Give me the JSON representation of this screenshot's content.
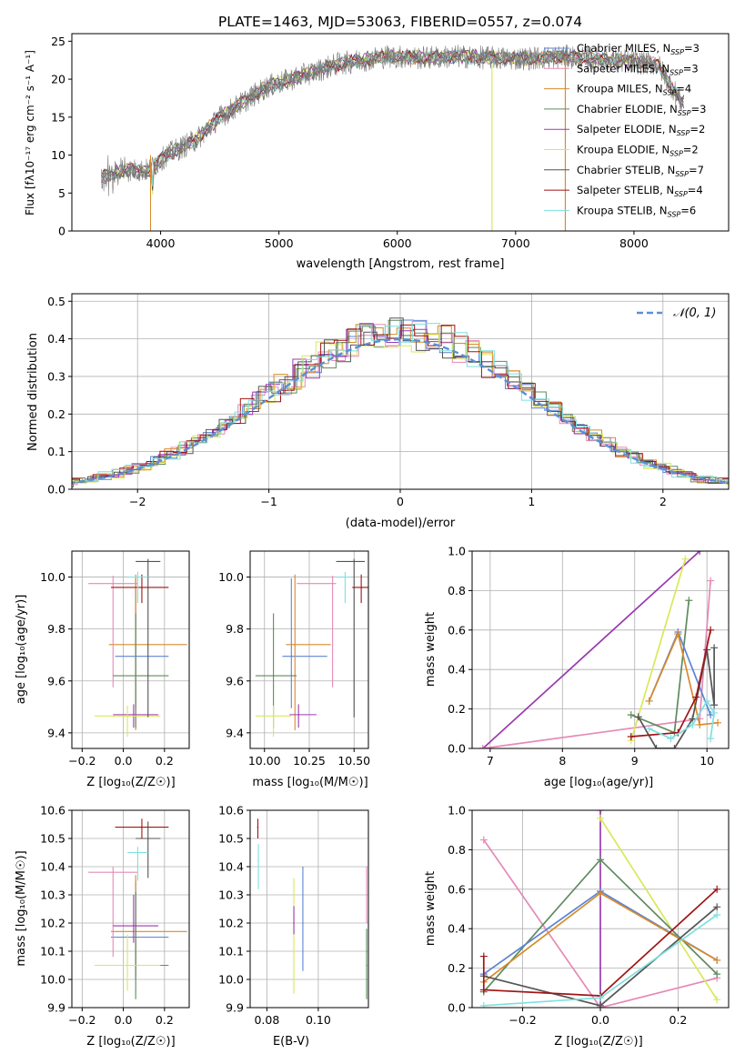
{
  "title": "PLATE=1463, MJD=53063, FIBERID=0557, z=0.074",
  "colors": {
    "cm": "#5b84d6",
    "sm": "#e58ab7",
    "km": "#d98a2b",
    "ce": "#5f8a5f",
    "se": "#9a3ab0",
    "ke": "#d9e85a",
    "cs": "#555555",
    "ss": "#a01515",
    "ks": "#7fdfe0",
    "grid": "#b0b0b0"
  },
  "labels": {
    "spec_x": "wavelength [Angstrom, rest frame]",
    "spec_y": "Flux [fλ10⁻¹⁷ erg cm⁻² s⁻¹ A⁻¹]",
    "hist_x": "(data-model)/error",
    "hist_y": "Normed distribution",
    "hist_legend": "𝒩(0, 1)",
    "p1_x": "Z [log₁₀(Z/Z☉)]",
    "p1_y": "age  [log₁₀(age/yr)]",
    "p2_x": "mass [log₁₀(M/M☉)]",
    "p3_x": "age  [log₁₀(age/yr)]",
    "p3_y": "mass weight",
    "p4_x": "Z [log₁₀(Z/Z☉)]",
    "p4_y": "mass [log₁₀(M/M☉)]",
    "p5_x": "E(B-V)",
    "p6_x": "Z [log₁₀(Z/Z☉)]",
    "p6_y": "mass weight"
  },
  "legend": [
    {
      "key": "cm",
      "text": "Chabrier MILES, N",
      "sub": "SSP",
      "n": "=3"
    },
    {
      "key": "sm",
      "text": "Salpeter MILES, N",
      "sub": "SSP",
      "n": "=3"
    },
    {
      "key": "km",
      "text": "Kroupa MILES, N",
      "sub": "SSP",
      "n": "=4"
    },
    {
      "key": "ce",
      "text": "Chabrier ELODIE, N",
      "sub": "SSP",
      "n": "=3"
    },
    {
      "key": "se",
      "text": "Salpeter ELODIE, N",
      "sub": "SSP",
      "n": "=2"
    },
    {
      "key": "ke",
      "text": "Kroupa ELODIE, N",
      "sub": "SSP",
      "n": "=2"
    },
    {
      "key": "cs",
      "text": "Chabrier STELIB, N",
      "sub": "SSP",
      "n": "=7"
    },
    {
      "key": "ss",
      "text": "Salpeter STELIB, N",
      "sub": "SSP",
      "n": "=4"
    },
    {
      "key": "ks",
      "text": "Kroupa STELIB, N",
      "sub": "SSP",
      "n": "=6"
    }
  ],
  "chart_data": [
    {
      "type": "line",
      "panel": "spectrum",
      "xlim": [
        3250,
        8800
      ],
      "ylim": [
        0,
        26
      ],
      "xticks": [
        4000,
        5000,
        6000,
        7000,
        8000
      ],
      "yticks": [
        0,
        5,
        10,
        15,
        20,
        25
      ],
      "series_note": "observed spectrum (grey) with 9 model fits",
      "continuum": [
        [
          3500,
          7
        ],
        [
          3700,
          8
        ],
        [
          3900,
          8
        ],
        [
          4050,
          10
        ],
        [
          4300,
          12
        ],
        [
          4500,
          15
        ],
        [
          4700,
          17
        ],
        [
          4900,
          19
        ],
        [
          5100,
          20
        ],
        [
          5300,
          21
        ],
        [
          5500,
          22
        ],
        [
          5700,
          22.5
        ],
        [
          5900,
          23
        ],
        [
          6200,
          22.8
        ],
        [
          6500,
          23
        ],
        [
          6800,
          22.8
        ],
        [
          7000,
          22.7
        ],
        [
          7200,
          22.8
        ],
        [
          7400,
          23
        ],
        [
          8200,
          22
        ],
        [
          8400,
          17
        ]
      ]
    },
    {
      "type": "histogram",
      "panel": "residuals",
      "xlim": [
        -2.5,
        2.5
      ],
      "ylim": [
        0,
        0.52
      ],
      "xticks": [
        -2,
        -1,
        0,
        1,
        2
      ],
      "yticks": [
        0,
        0.1,
        0.2,
        0.3,
        0.4,
        0.5
      ],
      "normal": {
        "mean": 0,
        "sigma": 1
      }
    },
    {
      "type": "scatter",
      "panel": "Z-age",
      "xlim": [
        -0.25,
        0.32
      ],
      "ylim": [
        9.34,
        10.1
      ],
      "xticks": [
        -0.2,
        0,
        0.2
      ],
      "yticks": [
        9.4,
        9.6,
        9.8,
        10.0
      ],
      "points": [
        {
          "key": "cm",
          "x": 0.06,
          "y": 9.695,
          "xe": [
            0.1,
            0.16
          ],
          "ye": [
            0.2,
            0.3
          ]
        },
        {
          "key": "km",
          "x": 0.06,
          "y": 9.74,
          "xe": [
            0.13,
            0.25
          ],
          "ye": [
            0.33,
            0.27
          ]
        },
        {
          "key": "sm",
          "x": -0.05,
          "y": 9.975,
          "xe": [
            0.12,
            0.12
          ],
          "ye": [
            0.4,
            0.03
          ]
        },
        {
          "key": "ce",
          "x": 0.06,
          "y": 9.62,
          "xe": [
            0.11,
            0.16
          ],
          "ye": [
            0.2,
            0.24
          ]
        },
        {
          "key": "se",
          "x": 0.05,
          "y": 9.47,
          "xe": [
            0.1,
            0.12
          ],
          "ye": [
            0.05,
            0.04
          ]
        },
        {
          "key": "ke",
          "x": 0.02,
          "y": 9.465,
          "xe": [
            0.16,
            0.16
          ],
          "ye": [
            0.08,
            0.04
          ]
        },
        {
          "key": "cs",
          "x": 0.12,
          "y": 10.06,
          "xe": [
            0.06,
            0.06
          ],
          "ye": [
            0.6,
            0.01
          ]
        },
        {
          "key": "ss",
          "x": 0.09,
          "y": 9.96,
          "xe": [
            0.15,
            0.13
          ],
          "ye": [
            0.06,
            0.05
          ]
        },
        {
          "key": "ks",
          "x": 0.07,
          "y": 10.0,
          "xe": [
            0.05,
            0.05
          ],
          "ye": [
            0.1,
            0.02
          ]
        }
      ]
    },
    {
      "type": "scatter",
      "panel": "mass-age",
      "xlim": [
        9.92,
        10.58
      ],
      "ylim": [
        9.34,
        10.1
      ],
      "xticks": [
        10.0,
        10.25,
        10.5
      ],
      "yticks": [
        9.4,
        9.6,
        9.8,
        10.0
      ],
      "points": [
        {
          "key": "cm",
          "x": 10.15,
          "y": 9.695,
          "xe": [
            0.05,
            0.2
          ],
          "ye": [
            0.2,
            0.3
          ]
        },
        {
          "key": "km",
          "x": 10.17,
          "y": 9.74,
          "xe": [
            0.05,
            0.2
          ],
          "ye": [
            0.33,
            0.27
          ]
        },
        {
          "key": "sm",
          "x": 10.38,
          "y": 9.975,
          "xe": [
            0.2,
            0.02
          ],
          "ye": [
            0.4,
            0.03
          ]
        },
        {
          "key": "ce",
          "x": 10.05,
          "y": 9.62,
          "xe": [
            0.1,
            0.13
          ],
          "ye": [
            0.2,
            0.24
          ]
        },
        {
          "key": "se",
          "x": 10.19,
          "y": 9.47,
          "xe": [
            0.05,
            0.1
          ],
          "ye": [
            0.05,
            0.04
          ]
        },
        {
          "key": "ke",
          "x": 10.05,
          "y": 9.465,
          "xe": [
            0.1,
            0.1
          ],
          "ye": [
            0.08,
            0.04
          ]
        },
        {
          "key": "cs",
          "x": 10.5,
          "y": 10.06,
          "xe": [
            0.1,
            0.06
          ],
          "ye": [
            0.6,
            0.01
          ]
        },
        {
          "key": "ss",
          "x": 10.54,
          "y": 9.96,
          "xe": [
            0.05,
            0.04
          ],
          "ye": [
            0.06,
            0.05
          ]
        },
        {
          "key": "ks",
          "x": 10.45,
          "y": 10.0,
          "xe": [
            0.05,
            0.03
          ],
          "ye": [
            0.1,
            0.02
          ]
        }
      ]
    },
    {
      "type": "line",
      "panel": "age-weight",
      "xlim": [
        6.75,
        10.3
      ],
      "ylim": [
        0,
        1
      ],
      "xticks": [
        7,
        8,
        9,
        10
      ],
      "yticks": [
        0,
        0.2,
        0.4,
        0.6,
        0.8,
        1.0
      ],
      "series": [
        {
          "key": "se",
          "x": [
            6.9,
            9.9
          ],
          "y": [
            0.0,
            1.0
          ]
        },
        {
          "key": "sm",
          "x": [
            6.9,
            9.9,
            10.05
          ],
          "y": [
            0.0,
            0.15,
            0.85
          ]
        },
        {
          "key": "ke",
          "x": [
            8.95,
            9.7
          ],
          "y": [
            0.04,
            0.96
          ]
        },
        {
          "key": "ce",
          "x": [
            8.95,
            9.55,
            9.75
          ],
          "y": [
            0.17,
            0.08,
            0.75
          ]
        },
        {
          "key": "cm",
          "x": [
            9.2,
            9.6,
            10.05
          ],
          "y": [
            0.24,
            0.59,
            0.17
          ]
        },
        {
          "key": "km",
          "x": [
            9.2,
            9.6,
            9.9,
            10.15
          ],
          "y": [
            0.24,
            0.58,
            0.12,
            0.13
          ]
        },
        {
          "key": "cs",
          "x": [
            9.05,
            9.3,
            9.55,
            9.8,
            10.0,
            10.1,
            10.1
          ],
          "y": [
            0.16,
            0.0,
            0.0,
            0.15,
            0.5,
            0.22,
            0.51
          ]
        },
        {
          "key": "ss",
          "x": [
            8.95,
            9.6,
            9.85,
            10.05
          ],
          "y": [
            0.06,
            0.08,
            0.26,
            0.6
          ]
        },
        {
          "key": "ks",
          "x": [
            9.2,
            9.5,
            9.8,
            10.0,
            10.1,
            10.05
          ],
          "y": [
            0.1,
            0.05,
            0.12,
            0.24,
            0.18,
            0.05
          ]
        }
      ]
    },
    {
      "type": "scatter",
      "panel": "Z-mass",
      "xlim": [
        -0.25,
        0.32
      ],
      "ylim": [
        9.9,
        10.6
      ],
      "xticks": [
        -0.2,
        0,
        0.2
      ],
      "yticks": [
        9.9,
        10.0,
        10.1,
        10.2,
        10.3,
        10.4,
        10.5,
        10.6
      ],
      "points": [
        {
          "key": "cm",
          "x": 0.06,
          "y": 10.15,
          "xe": [
            0.12,
            0.16
          ],
          "ye": [
            0.15,
            0.2
          ]
        },
        {
          "key": "km",
          "x": 0.06,
          "y": 10.17,
          "xe": [
            0.12,
            0.25
          ],
          "ye": [
            0.15,
            0.2
          ]
        },
        {
          "key": "sm",
          "x": -0.05,
          "y": 10.38,
          "xe": [
            0.12,
            0.12
          ],
          "ye": [
            0.3,
            0.02
          ]
        },
        {
          "key": "ce",
          "x": 0.06,
          "y": 10.05,
          "xe": [
            0.11,
            0.16
          ],
          "ye": [
            0.12,
            0.26
          ]
        },
        {
          "key": "se",
          "x": 0.05,
          "y": 10.19,
          "xe": [
            0.1,
            0.12
          ],
          "ye": [
            0.06,
            0.11
          ]
        },
        {
          "key": "ke",
          "x": 0.02,
          "y": 10.05,
          "xe": [
            0.16,
            0.16
          ],
          "ye": [
            0.09,
            0.11
          ]
        },
        {
          "key": "cs",
          "x": 0.12,
          "y": 10.5,
          "xe": [
            0.06,
            0.06
          ],
          "ye": [
            0.14,
            0.06
          ]
        },
        {
          "key": "ss",
          "x": 0.09,
          "y": 10.54,
          "xe": [
            0.13,
            0.13
          ],
          "ye": [
            0.04,
            0.03
          ]
        },
        {
          "key": "ks",
          "x": 0.07,
          "y": 10.45,
          "xe": [
            0.05,
            0.05
          ],
          "ye": [
            0.1,
            0.02
          ]
        }
      ]
    },
    {
      "type": "scatter",
      "panel": "ebv-mass",
      "xlim": [
        0.0735,
        0.1195
      ],
      "ylim": [
        9.9,
        10.6
      ],
      "xticks": [
        0.08,
        0.1
      ],
      "yticks": [
        9.9,
        10.0,
        10.1,
        10.2,
        10.3,
        10.4,
        10.5,
        10.6
      ],
      "points": [
        {
          "key": "ss",
          "x": 0.0765,
          "y": 10.54,
          "ye": [
            0.04,
            0.03
          ]
        },
        {
          "key": "ks",
          "x": 0.0767,
          "y": 10.42,
          "ye": [
            0.1,
            0.06
          ]
        },
        {
          "key": "ke",
          "x": 0.0905,
          "y": 10.05,
          "ye": [
            0.1,
            0.31
          ]
        },
        {
          "key": "se",
          "x": 0.0905,
          "y": 10.2,
          "ye": [
            0.04,
            0.06
          ]
        },
        {
          "key": "cm",
          "x": 0.094,
          "y": 10.2,
          "ye": [
            0.17,
            0.2
          ]
        },
        {
          "key": "sm",
          "x": 0.1188,
          "y": 10.3,
          "ye": [
            0.1,
            0.1
          ]
        },
        {
          "key": "ce",
          "x": 0.1188,
          "y": 10.05,
          "ye": [
            0.12,
            0.13
          ]
        }
      ]
    },
    {
      "type": "line",
      "panel": "Z-weight",
      "xlim": [
        -0.33,
        0.33
      ],
      "ylim": [
        0,
        1
      ],
      "xticks": [
        -0.2,
        0,
        0.2
      ],
      "yticks": [
        0,
        0.2,
        0.4,
        0.6,
        0.8,
        1.0
      ],
      "series": [
        {
          "key": "se",
          "x": [
            0.0,
            0.0
          ],
          "y": [
            0.0,
            1.0
          ]
        },
        {
          "key": "sm",
          "x": [
            -0.3,
            0.0,
            0.3
          ],
          "y": [
            0.85,
            0.0,
            0.15
          ]
        },
        {
          "key": "ke",
          "x": [
            0.0,
            0.3
          ],
          "y": [
            0.96,
            0.04
          ]
        },
        {
          "key": "ce",
          "x": [
            -0.3,
            0.0,
            0.3
          ],
          "y": [
            0.08,
            0.75,
            0.17
          ]
        },
        {
          "key": "cm",
          "x": [
            -0.3,
            0.0,
            0.3
          ],
          "y": [
            0.17,
            0.59,
            0.24
          ]
        },
        {
          "key": "km",
          "x": [
            -0.3,
            0.0,
            0.3
          ],
          "y": [
            0.13,
            0.58,
            0.24
          ]
        },
        {
          "key": "cs",
          "x": [
            -0.3,
            0.0,
            0.3
          ],
          "y": [
            0.16,
            0.01,
            0.51
          ]
        },
        {
          "key": "ss",
          "x": [
            -0.3,
            -0.3,
            0.0,
            0.3
          ],
          "y": [
            0.26,
            0.09,
            0.06,
            0.6
          ]
        },
        {
          "key": "ks",
          "x": [
            -0.3,
            0.0,
            0.3
          ],
          "y": [
            0.01,
            0.05,
            0.47
          ]
        }
      ]
    }
  ]
}
